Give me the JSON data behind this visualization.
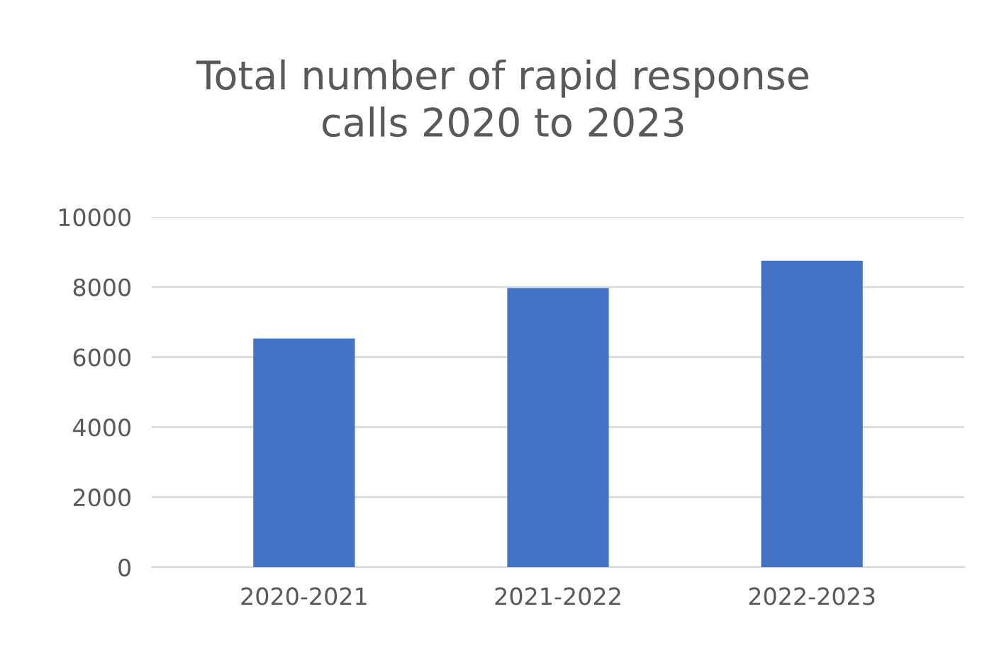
{
  "chart_data": {
    "type": "bar",
    "title": "Total number of rapid response\ncalls 2020 to 2023",
    "categories": [
      "2020-2021",
      "2021-2022",
      "2022-2023"
    ],
    "values": [
      6530,
      7970,
      8750
    ],
    "color": "#4472c4",
    "ylim": [
      0,
      10000
    ],
    "yticks": [
      0,
      2000,
      4000,
      6000,
      8000,
      10000
    ],
    "grid": "y"
  }
}
